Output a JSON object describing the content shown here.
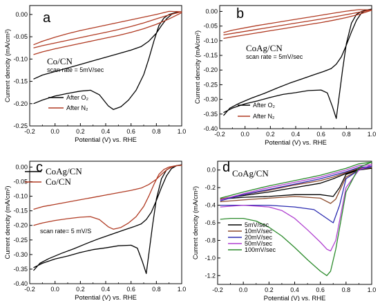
{
  "chart_data": [
    {
      "type": "line",
      "panel_label": "a",
      "sample_label": "Co/CN",
      "annotation": "scan rate = 5mV/sec",
      "xlabel": "Potential (V) vs. RHE",
      "ylabel": "Current dencity (mA/cm²)",
      "xlim": [
        -0.2,
        1.0
      ],
      "ylim": [
        -0.25,
        0.02
      ],
      "xticks": [
        "-0.2",
        "0.0",
        "0.2",
        "0.4",
        "0.6",
        "0.8",
        "1.0"
      ],
      "yticks": [
        "0.00",
        "-0.05",
        "-0.10",
        "-0.15",
        "-0.20",
        "-0.25"
      ],
      "legend_position": "bottom-left",
      "series": [
        {
          "name": "After O₂",
          "color": "#000000",
          "x": [
            -0.17,
            -0.1,
            0.0,
            0.1,
            0.2,
            0.28,
            0.35,
            0.42,
            0.46,
            0.52,
            0.58,
            0.64,
            0.7,
            0.74,
            0.78,
            0.82,
            0.86,
            0.9,
            0.95,
            1.0,
            0.96,
            0.92,
            0.88,
            0.84,
            0.8,
            0.74,
            0.68,
            0.6,
            0.5,
            0.4,
            0.3,
            0.2,
            0.1,
            0.0,
            -0.1,
            -0.17
          ],
          "y": [
            -0.2,
            -0.192,
            -0.183,
            -0.177,
            -0.172,
            -0.17,
            -0.18,
            -0.205,
            -0.213,
            -0.207,
            -0.192,
            -0.17,
            -0.135,
            -0.1,
            -0.06,
            -0.025,
            -0.008,
            0.0,
            0.004,
            0.006,
            0.005,
            0.0,
            -0.01,
            -0.025,
            -0.042,
            -0.06,
            -0.072,
            -0.08,
            -0.088,
            -0.096,
            -0.104,
            -0.112,
            -0.12,
            -0.128,
            -0.136,
            -0.145
          ]
        },
        {
          "name": "",
          "color": "#b03a22",
          "x": [
            -0.17,
            -0.1,
            0.0,
            0.1,
            0.2,
            0.3,
            0.4,
            0.5,
            0.6,
            0.7,
            0.8,
            0.9,
            1.0,
            0.9,
            0.8,
            0.7,
            0.6,
            0.5,
            0.4,
            0.3,
            0.2,
            0.1,
            0.0,
            -0.1,
            -0.17
          ],
          "y": [
            -0.075,
            -0.07,
            -0.064,
            -0.058,
            -0.052,
            -0.046,
            -0.04,
            -0.034,
            -0.027,
            -0.019,
            -0.01,
            -0.001,
            0.006,
            0.007,
            0.0,
            -0.006,
            -0.012,
            -0.018,
            -0.024,
            -0.03,
            -0.036,
            -0.043,
            -0.051,
            -0.06,
            -0.068
          ]
        },
        {
          "name": "After N₂",
          "color": "#b03a22",
          "x": [
            -0.17,
            -0.1,
            0.0,
            0.1,
            0.2,
            0.3,
            0.4,
            0.5,
            0.6,
            0.7,
            0.8,
            0.9,
            1.0
          ],
          "y": [
            -0.09,
            -0.084,
            -0.077,
            -0.071,
            -0.065,
            -0.059,
            -0.053,
            -0.047,
            -0.04,
            -0.032,
            -0.022,
            -0.01,
            0.004
          ]
        }
      ]
    },
    {
      "type": "line",
      "panel_label": "b",
      "sample_label": "CoAg/CN",
      "annotation": "scan rate = 5mV/sec",
      "xlabel": "Potential (V) vs. RHE",
      "ylabel": "Current dencity (mA/cm²)",
      "xlim": [
        -0.2,
        1.0
      ],
      "ylim": [
        -0.4,
        0.02
      ],
      "xticks": [
        "-0.2",
        "0.0",
        "0.2",
        "0.4",
        "0.6",
        "0.8",
        "1.0"
      ],
      "yticks": [
        "0.00",
        "-0.05",
        "-0.10",
        "-0.15",
        "-0.20",
        "-0.25",
        "-0.30",
        "-0.35",
        "-0.40"
      ],
      "legend_position": "bottom-left",
      "series": [
        {
          "name": "After O₂",
          "color": "#000000",
          "x": [
            -0.17,
            -0.1,
            0.0,
            0.1,
            0.2,
            0.3,
            0.4,
            0.5,
            0.6,
            0.65,
            0.69,
            0.72,
            0.74,
            0.77,
            0.8,
            0.84,
            0.88,
            0.92,
            0.96,
            1.0,
            0.96,
            0.92,
            0.88,
            0.84,
            0.8,
            0.76,
            0.72,
            0.68,
            0.62,
            0.55,
            0.45,
            0.35,
            0.25,
            0.15,
            0.05,
            -0.05,
            -0.12,
            -0.17
          ],
          "y": [
            -0.345,
            -0.33,
            -0.315,
            -0.305,
            -0.293,
            -0.283,
            -0.277,
            -0.27,
            -0.268,
            -0.278,
            -0.325,
            -0.365,
            -0.3,
            -0.2,
            -0.11,
            -0.04,
            -0.01,
            0.0,
            0.005,
            0.008,
            0.005,
            -0.005,
            -0.03,
            -0.07,
            -0.115,
            -0.155,
            -0.18,
            -0.195,
            -0.205,
            -0.215,
            -0.23,
            -0.245,
            -0.262,
            -0.28,
            -0.296,
            -0.314,
            -0.33,
            -0.355
          ]
        },
        {
          "name": "",
          "color": "#b03a22",
          "x": [
            -0.17,
            -0.1,
            0.0,
            0.1,
            0.2,
            0.3,
            0.4,
            0.5,
            0.6,
            0.7,
            0.8,
            0.9,
            1.0,
            0.9,
            0.8,
            0.7,
            0.6,
            0.5,
            0.4,
            0.3,
            0.2,
            0.1,
            0.0,
            -0.1,
            -0.17
          ],
          "y": [
            -0.08,
            -0.075,
            -0.068,
            -0.061,
            -0.054,
            -0.047,
            -0.04,
            -0.033,
            -0.026,
            -0.019,
            -0.011,
            -0.003,
            0.005,
            0.006,
            0.001,
            -0.006,
            -0.013,
            -0.02,
            -0.027,
            -0.034,
            -0.041,
            -0.048,
            -0.056,
            -0.064,
            -0.072
          ]
        },
        {
          "name": "After N₂",
          "color": "#b03a22",
          "x": [
            -0.17,
            -0.1,
            0.0,
            0.1,
            0.2,
            0.3,
            0.4,
            0.5,
            0.6,
            0.7,
            0.8,
            0.9,
            1.0
          ],
          "y": [
            -0.092,
            -0.087,
            -0.08,
            -0.073,
            -0.066,
            -0.059,
            -0.052,
            -0.045,
            -0.038,
            -0.03,
            -0.021,
            -0.01,
            0.004
          ]
        }
      ]
    },
    {
      "type": "line",
      "panel_label": "c",
      "annotation": "scan rate= 5 mV/S",
      "xlabel": "Potential (V) vs. RHE",
      "ylabel": "Current dencity (mA/cm²)",
      "xlim": [
        -0.2,
        1.0
      ],
      "ylim": [
        -0.4,
        0.02
      ],
      "xticks": [
        "-0.2",
        "0.0",
        "0.2",
        "0.4",
        "0.6",
        "0.8",
        "1.0"
      ],
      "yticks": [
        "0.00",
        "-0.05",
        "-0.10",
        "-0.15",
        "-0.20",
        "-0.25",
        "-0.30",
        "-0.35",
        "-0.40"
      ],
      "legend_position": "top-left",
      "series": [
        {
          "name": "CoAg/CN",
          "color": "#000000",
          "x": [
            -0.17,
            -0.1,
            0.0,
            0.1,
            0.2,
            0.3,
            0.4,
            0.5,
            0.6,
            0.65,
            0.69,
            0.72,
            0.74,
            0.77,
            0.8,
            0.84,
            0.88,
            0.92,
            0.96,
            1.0,
            0.96,
            0.92,
            0.88,
            0.84,
            0.8,
            0.76,
            0.72,
            0.68,
            0.62,
            0.55,
            0.45,
            0.35,
            0.25,
            0.15,
            0.05,
            -0.05,
            -0.12,
            -0.17
          ],
          "y": [
            -0.345,
            -0.33,
            -0.315,
            -0.305,
            -0.293,
            -0.283,
            -0.277,
            -0.27,
            -0.268,
            -0.278,
            -0.325,
            -0.365,
            -0.3,
            -0.2,
            -0.11,
            -0.04,
            -0.01,
            0.0,
            0.005,
            0.008,
            0.005,
            -0.005,
            -0.03,
            -0.07,
            -0.115,
            -0.155,
            -0.18,
            -0.195,
            -0.205,
            -0.215,
            -0.23,
            -0.245,
            -0.262,
            -0.28,
            -0.296,
            -0.314,
            -0.33,
            -0.355
          ]
        },
        {
          "name": "Co/CN",
          "color": "#b03a22",
          "x": [
            -0.17,
            -0.1,
            0.0,
            0.1,
            0.2,
            0.28,
            0.35,
            0.42,
            0.46,
            0.52,
            0.58,
            0.64,
            0.7,
            0.74,
            0.78,
            0.82,
            0.86,
            0.9,
            0.95,
            1.0,
            0.96,
            0.92,
            0.88,
            0.84,
            0.8,
            0.74,
            0.68,
            0.6,
            0.5,
            0.4,
            0.3,
            0.2,
            0.1,
            0.0,
            -0.1,
            -0.17
          ],
          "y": [
            -0.2,
            -0.192,
            -0.183,
            -0.177,
            -0.172,
            -0.17,
            -0.18,
            -0.205,
            -0.213,
            -0.207,
            -0.192,
            -0.17,
            -0.135,
            -0.1,
            -0.06,
            -0.025,
            -0.008,
            0.0,
            0.004,
            0.006,
            0.005,
            0.0,
            -0.01,
            -0.025,
            -0.042,
            -0.06,
            -0.072,
            -0.08,
            -0.088,
            -0.096,
            -0.104,
            -0.112,
            -0.12,
            -0.128,
            -0.136,
            -0.145
          ]
        }
      ]
    },
    {
      "type": "line",
      "panel_label": "d",
      "sample_label": "CoAg/CN",
      "xlabel": "Potential (V) vs. RHE",
      "ylabel": "Current dencity (mA/cm²)",
      "xlim": [
        -0.2,
        1.0
      ],
      "ylim": [
        -1.3,
        0.1
      ],
      "xticks": [
        "-0.2",
        "0.0",
        "0.2",
        "0.4",
        "0.6",
        "0.8",
        "1.0"
      ],
      "yticks": [
        "0.0",
        "-0.2",
        "-0.4",
        "-0.6",
        "-0.8",
        "-1.0",
        "-1.2"
      ],
      "legend_position": "bottom-left",
      "series": [
        {
          "name": "5mV/sec",
          "color": "#000000",
          "x": [
            -0.18,
            0.0,
            0.2,
            0.4,
            0.6,
            0.7,
            0.75,
            0.8,
            0.9,
            1.0,
            0.9,
            0.8,
            0.7,
            0.6,
            0.4,
            0.2,
            0.0,
            -0.18
          ],
          "y": [
            -0.33,
            -0.31,
            -0.3,
            -0.28,
            -0.28,
            -0.3,
            -0.2,
            -0.05,
            0.0,
            0.02,
            0.01,
            -0.04,
            -0.1,
            -0.15,
            -0.2,
            -0.25,
            -0.29,
            -0.33
          ]
        },
        {
          "name": "10mV/sec",
          "color": "#8b4a2b",
          "x": [
            -0.18,
            0.0,
            0.2,
            0.4,
            0.6,
            0.68,
            0.72,
            0.8,
            0.9,
            1.0,
            0.9,
            0.8,
            0.7,
            0.6,
            0.4,
            0.2,
            0.0,
            -0.18
          ],
          "y": [
            -0.36,
            -0.34,
            -0.32,
            -0.3,
            -0.32,
            -0.38,
            -0.33,
            -0.08,
            0.0,
            0.03,
            0.02,
            -0.03,
            -0.08,
            -0.12,
            -0.17,
            -0.23,
            -0.28,
            -0.33
          ]
        },
        {
          "name": "20mV/sec",
          "color": "#2a2ab0",
          "x": [
            -0.18,
            0.0,
            0.2,
            0.4,
            0.55,
            0.65,
            0.7,
            0.75,
            0.8,
            0.9,
            1.0,
            0.9,
            0.8,
            0.7,
            0.6,
            0.4,
            0.2,
            0.0,
            -0.18
          ],
          "y": [
            -0.4,
            -0.4,
            -0.4,
            -0.42,
            -0.45,
            -0.55,
            -0.6,
            -0.4,
            -0.1,
            0.0,
            0.04,
            0.03,
            -0.02,
            -0.06,
            -0.1,
            -0.16,
            -0.22,
            -0.28,
            -0.35
          ]
        },
        {
          "name": "50mV/sec",
          "color": "#b040d0",
          "x": [
            -0.18,
            0.0,
            0.2,
            0.3,
            0.4,
            0.5,
            0.6,
            0.65,
            0.68,
            0.72,
            0.8,
            0.9,
            1.0,
            0.9,
            0.8,
            0.7,
            0.6,
            0.4,
            0.2,
            0.0,
            -0.18
          ],
          "y": [
            -0.42,
            -0.4,
            -0.42,
            -0.46,
            -0.55,
            -0.68,
            -0.82,
            -0.9,
            -0.92,
            -0.8,
            -0.2,
            0.0,
            0.06,
            0.05,
            0.0,
            -0.04,
            -0.08,
            -0.14,
            -0.2,
            -0.27,
            -0.34
          ]
        },
        {
          "name": "100mV/sec",
          "color": "#2a8a2a",
          "x": [
            -0.18,
            -0.1,
            0.0,
            0.1,
            0.2,
            0.3,
            0.4,
            0.5,
            0.6,
            0.65,
            0.68,
            0.72,
            0.8,
            0.9,
            1.0,
            0.9,
            0.8,
            0.7,
            0.6,
            0.4,
            0.2,
            0.0,
            -0.18
          ],
          "y": [
            -0.56,
            -0.55,
            -0.55,
            -0.58,
            -0.65,
            -0.75,
            -0.88,
            -1.02,
            -1.15,
            -1.2,
            -1.15,
            -0.9,
            -0.25,
            0.03,
            0.09,
            0.07,
            0.02,
            -0.02,
            -0.06,
            -0.12,
            -0.18,
            -0.25,
            -0.32
          ]
        }
      ]
    }
  ]
}
